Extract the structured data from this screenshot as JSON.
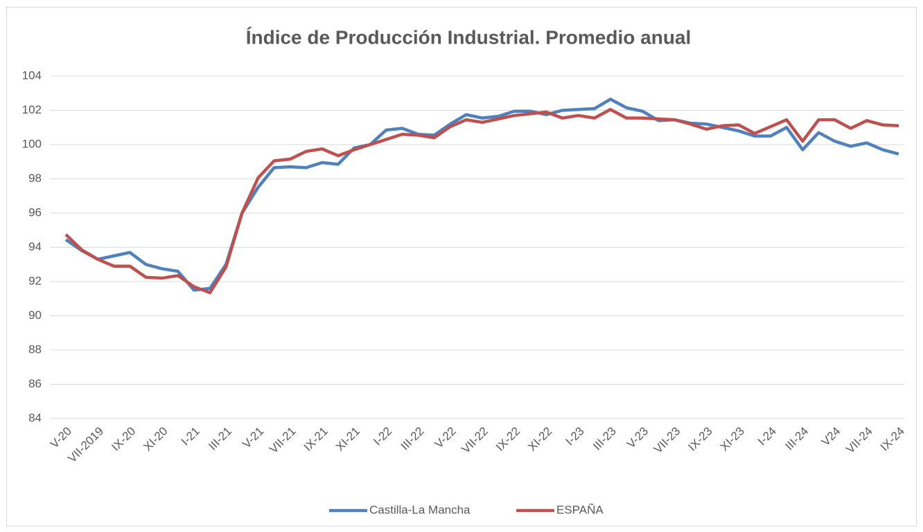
{
  "chart_data": {
    "type": "line",
    "title": "Índice de Producción Industrial. Promedio anual",
    "categories": [
      "V-20",
      null,
      "VII-2019",
      null,
      "IX-20",
      null,
      "XI-20",
      null,
      "I-21",
      null,
      "III-21",
      null,
      "V-21",
      null,
      "VII-21",
      null,
      "IX-21",
      null,
      "XI-21",
      null,
      "I-22",
      null,
      "III-22",
      null,
      "V-22",
      null,
      "VII-22",
      null,
      "IX-22",
      null,
      "XI-22",
      null,
      "I-23",
      null,
      "III-23",
      null,
      "V-23",
      null,
      "VII-23",
      null,
      "IX-23",
      null,
      "XI-23",
      null,
      "I-24",
      null,
      "III-24",
      null,
      "V24",
      null,
      "VII-24",
      null,
      "IX-24"
    ],
    "series": [
      {
        "name": "Castilla-La Mancha",
        "color": "#4f81bd",
        "values": [
          94.45,
          93.8,
          93.3,
          93.5,
          93.7,
          93.0,
          92.75,
          92.6,
          91.5,
          91.6,
          93.0,
          96.0,
          97.5,
          98.65,
          98.7,
          98.65,
          98.95,
          98.85,
          99.8,
          100.0,
          100.85,
          100.95,
          100.6,
          100.55,
          101.2,
          101.75,
          101.55,
          101.65,
          101.95,
          101.95,
          101.75,
          102.0,
          102.05,
          102.1,
          102.65,
          102.15,
          101.95,
          101.4,
          101.45,
          101.25,
          101.2,
          101.0,
          100.8,
          100.5,
          100.5,
          101.0,
          99.7,
          100.7,
          100.2,
          99.9,
          100.1,
          99.7,
          99.45
        ]
      },
      {
        "name": "ESPAÑA",
        "color": "#c0504d",
        "values": [
          94.75,
          93.85,
          93.3,
          92.9,
          92.9,
          92.25,
          92.2,
          92.35,
          91.7,
          91.35,
          92.85,
          96.0,
          98.05,
          99.05,
          99.15,
          99.6,
          99.75,
          99.35,
          99.7,
          100.0,
          100.3,
          100.6,
          100.55,
          100.4,
          101.05,
          101.45,
          101.3,
          101.5,
          101.7,
          101.8,
          101.9,
          101.55,
          101.7,
          101.55,
          102.05,
          101.55,
          101.55,
          101.5,
          101.45,
          101.2,
          100.9,
          101.1,
          101.15,
          100.65,
          101.05,
          101.45,
          100.2,
          101.45,
          101.45,
          100.95,
          101.4,
          101.15,
          101.1
        ]
      }
    ],
    "ylim": [
      84,
      104
    ],
    "yticks": [
      84,
      86,
      88,
      90,
      92,
      94,
      96,
      98,
      100,
      102,
      104
    ],
    "grid": true,
    "legend": "bottom"
  }
}
